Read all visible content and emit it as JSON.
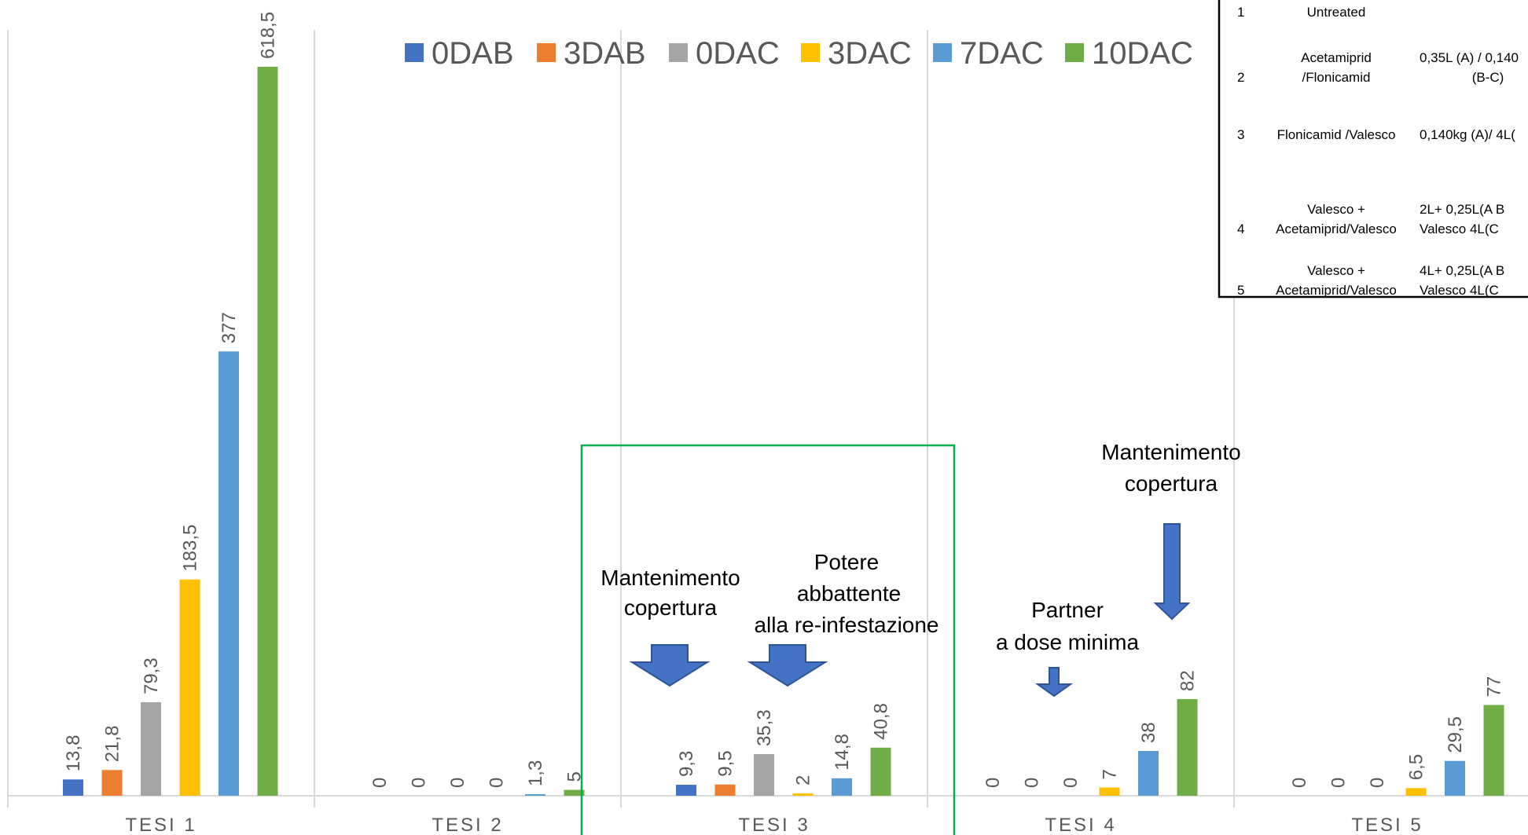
{
  "chart_data": {
    "type": "bar",
    "categories": [
      "TESI 1",
      "TESI 2",
      "TESI 3",
      "TESI 4",
      "TESI 5"
    ],
    "series": [
      {
        "name": "0DAB",
        "color": "#4472C4",
        "values": [
          13.8,
          0,
          9.3,
          0,
          0
        ],
        "labels": [
          "13,8",
          "0",
          "9,3",
          "0",
          "0"
        ]
      },
      {
        "name": "3DAB",
        "color": "#ED7D31",
        "values": [
          21.8,
          0,
          9.5,
          0,
          0
        ],
        "labels": [
          "21,8",
          "0",
          "9,5",
          "0",
          "0"
        ]
      },
      {
        "name": "0DAC",
        "color": "#A5A5A5",
        "values": [
          79.3,
          0,
          35.3,
          0,
          0
        ],
        "labels": [
          "79,3",
          "0",
          "35,3",
          "0",
          "0"
        ]
      },
      {
        "name": "3DAC",
        "color": "#FFC000",
        "values": [
          183.5,
          0,
          2,
          7,
          6.5
        ],
        "labels": [
          "183,5",
          "0",
          "2",
          "7",
          "6,5"
        ]
      },
      {
        "name": "7DAC",
        "color": "#5B9BD5",
        "values": [
          377,
          1.3,
          14.8,
          38,
          29.5
        ],
        "labels": [
          "377",
          "1,3",
          "14,8",
          "38",
          "29,5"
        ]
      },
      {
        "name": "10DAC",
        "color": "#70AD47",
        "values": [
          618.5,
          5,
          40.8,
          82,
          77
        ],
        "labels": [
          "618,5",
          "5",
          "40,8",
          "82",
          "77"
        ]
      }
    ],
    "ylim": [
      0,
      650
    ],
    "grid": "vertical separators",
    "legend": "top"
  },
  "annotations": {
    "box1": [
      "Mantenimento",
      "copertura"
    ],
    "box2": [
      "Potere",
      "abbattente",
      "alla re-infestazione"
    ],
    "box3": [
      "Partner",
      "a dose minima"
    ],
    "box4": [
      "Mantenimento",
      "copertura"
    ]
  },
  "table": {
    "rows": [
      {
        "n": "1",
        "product": [
          "Untreated"
        ],
        "dose": [
          ""
        ]
      },
      {
        "n": "2",
        "product": [
          "Acetamiprid",
          "/Flonicamid"
        ],
        "dose": [
          "0,35L (A) / 0,140",
          "(B-C)"
        ]
      },
      {
        "n": "3",
        "product": [
          "Flonicamid /Valesco"
        ],
        "dose": [
          "0,140kg (A)/ 4L("
        ]
      },
      {
        "n": "4",
        "product": [
          "Valesco +",
          "Acetamiprid/Valesco"
        ],
        "dose": [
          "2L+ 0,25L(A B",
          "Valesco 4L(C"
        ]
      },
      {
        "n": "5",
        "product": [
          "Valesco +",
          "Acetamiprid/Valesco"
        ],
        "dose": [
          "4L+ 0,25L(A B",
          "Valesco 4L(C"
        ]
      }
    ]
  },
  "colors": {
    "highlight_box": "#00B050",
    "arrow": "#4472C4"
  }
}
